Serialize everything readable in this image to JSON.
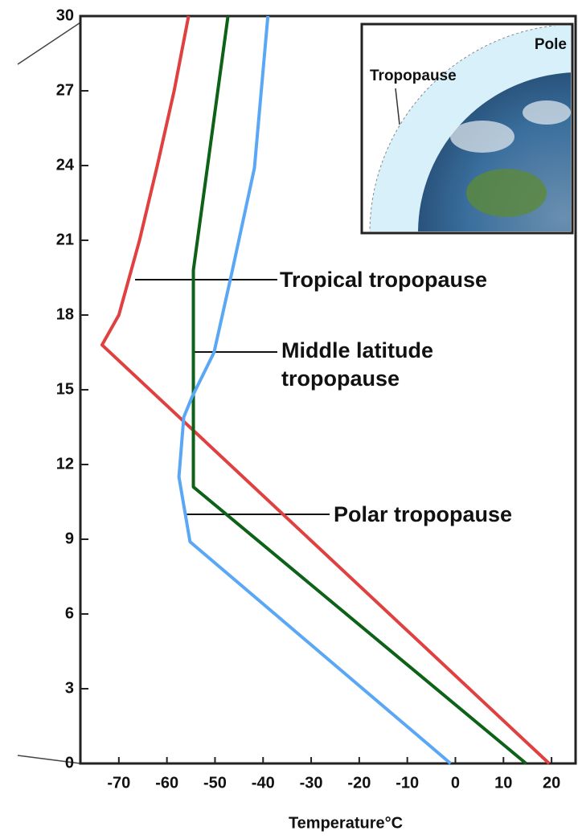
{
  "chart_data": {
    "type": "line",
    "xlabel": "Temperature°C",
    "xlim": [
      -78,
      25
    ],
    "xticks": [
      -70,
      -60,
      -50,
      -40,
      -30,
      -20,
      -10,
      0,
      10,
      20
    ],
    "ylim": [
      0,
      30
    ],
    "yticks": [
      0,
      3,
      6,
      9,
      12,
      15,
      18,
      21,
      24,
      27,
      30
    ],
    "series": [
      {
        "color": "#e04040",
        "x": [
          19.5,
          -73.5,
          -70,
          -65.7,
          -62,
          -58.5,
          -55.5
        ],
        "y": [
          0,
          16.8,
          18,
          21,
          24,
          27,
          30
        ]
      },
      {
        "color": "#0e6218",
        "x": [
          14.7,
          -54.5,
          -54.5,
          -47.3
        ],
        "y": [
          0,
          11.1,
          19.8,
          30
        ]
      },
      {
        "color": "#5aa8f5",
        "x": [
          -1,
          -55.2,
          -57.5,
          -56.5,
          -54.8,
          -50.2,
          -46.5,
          -41.8,
          -39
        ],
        "y": [
          0,
          8.9,
          11.5,
          13.9,
          14.7,
          16.5,
          19.7,
          23.9,
          30
        ]
      }
    ],
    "annotations": [
      [
        "Tropical tropopause"
      ],
      [
        "Middle latitude",
        "tropopause"
      ],
      [
        "Polar tropopause"
      ]
    ],
    "inset": {
      "pole": "Pole",
      "tropopause": "Tropopause"
    }
  }
}
